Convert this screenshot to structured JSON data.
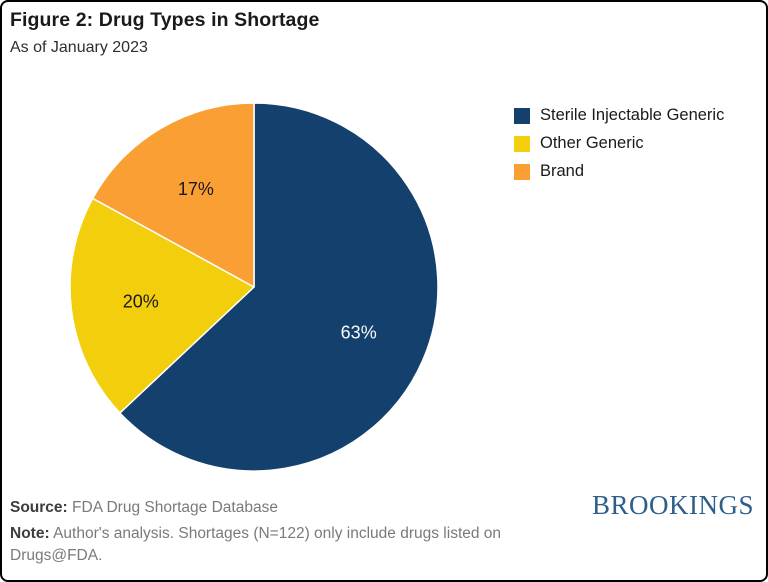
{
  "header": {
    "title": "Figure 2: Drug Types in Shortage",
    "subtitle": "As of January 2023"
  },
  "chart_data": {
    "type": "pie",
    "title": "Figure 2: Drug Types in Shortage",
    "subtitle": "As of January 2023",
    "categories": [
      "Sterile Injectable Generic",
      "Other Generic",
      "Brand"
    ],
    "values": [
      63,
      20,
      17
    ],
    "labels": [
      "63%",
      "20%",
      "17%"
    ],
    "colors": [
      "#14406E",
      "#F2CE0D",
      "#FA9F33"
    ],
    "label_colors": [
      "#FAFAFA",
      "#1A1A1A",
      "#1A1A1A"
    ],
    "unit": "%",
    "total": 100,
    "start_angle": 0,
    "direction": "clockwise",
    "legend_position": "right"
  },
  "footer": {
    "source_label": "Source:",
    "source_text": "FDA Drug Shortage Database",
    "note_label": "Note:",
    "note_text": "Author's analysis. Shortages (N=122) only include drugs listed on Drugs@FDA."
  },
  "branding": {
    "logo_text": "BROOKINGS",
    "logo_color": "#2D5F8A"
  }
}
